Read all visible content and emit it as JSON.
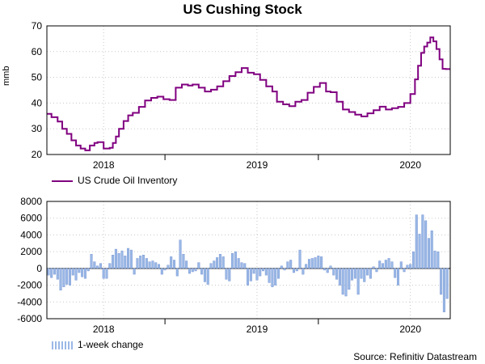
{
  "title": "US Cushing Stock",
  "source": "Source: Refinitiv Datastream",
  "colors": {
    "inventory_line": "#800080",
    "change_bars": "#9ab8e6",
    "change_bars_edge": "#6f8fd0",
    "grid": "#c8c8c8"
  },
  "chart_data": [
    {
      "type": "line",
      "ylabel": "mmb",
      "ylim": [
        20,
        70
      ],
      "yticks": [
        20,
        30,
        40,
        50,
        60,
        70
      ],
      "xlim": [
        2017.63,
        2020.26
      ],
      "xtick_labels": [
        "2018",
        "2019",
        "2020"
      ],
      "grid": true,
      "legend": "bottom-left",
      "series": [
        {
          "name": "US Crude Oil Inventory",
          "x": [
            2017.63,
            2017.66,
            2017.7,
            2017.73,
            2017.76,
            2017.79,
            2017.82,
            2017.85,
            2017.88,
            2017.91,
            2017.94,
            2017.96,
            2018.0,
            2018.04,
            2018.06,
            2018.08,
            2018.1,
            2018.13,
            2018.16,
            2018.19,
            2018.23,
            2018.27,
            2018.31,
            2018.35,
            2018.39,
            2018.43,
            2018.47,
            2018.51,
            2018.55,
            2018.58,
            2018.62,
            2018.66,
            2018.7,
            2018.74,
            2018.78,
            2018.82,
            2018.86,
            2018.9,
            2018.94,
            2018.98,
            2019.02,
            2019.06,
            2019.1,
            2019.13,
            2019.17,
            2019.21,
            2019.25,
            2019.29,
            2019.33,
            2019.37,
            2019.41,
            2019.45,
            2019.48,
            2019.52,
            2019.56,
            2019.6,
            2019.64,
            2019.68,
            2019.72,
            2019.76,
            2019.8,
            2019.84,
            2019.88,
            2019.92,
            2019.96,
            2020.0,
            2020.03,
            2020.05,
            2020.07,
            2020.09,
            2020.11,
            2020.13,
            2020.15,
            2020.17,
            2020.19,
            2020.21,
            2020.23
          ],
          "y": [
            35.8,
            34.5,
            32.8,
            30.0,
            28.0,
            25.5,
            23.5,
            22.3,
            21.6,
            23.5,
            24.5,
            24.8,
            22.3,
            22.6,
            24.5,
            27.0,
            30.0,
            33.0,
            35.2,
            36.2,
            38.5,
            41.0,
            42.0,
            42.5,
            41.5,
            41.2,
            46.0,
            47.2,
            46.8,
            47.2,
            46.0,
            44.5,
            45.2,
            46.5,
            48.5,
            50.5,
            52.0,
            53.6,
            51.8,
            51.2,
            49.0,
            46.5,
            44.5,
            40.5,
            39.5,
            38.8,
            40.5,
            41.2,
            44.0,
            46.3,
            47.8,
            44.5,
            44.2,
            40.5,
            37.5,
            36.5,
            35.5,
            34.8,
            36.0,
            37.2,
            38.6,
            37.5,
            38.0,
            38.5,
            40.0,
            43.5,
            49.2,
            54.5,
            59.5,
            62.0,
            63.5,
            65.5,
            64.0,
            61.0,
            57.0,
            53.3,
            53.2
          ]
        }
      ]
    },
    {
      "type": "bar",
      "ylim": [
        -6000,
        8000
      ],
      "yticks": [
        -6000,
        -4000,
        -2000,
        0,
        2000,
        4000,
        6000,
        8000
      ],
      "xlim": [
        2017.63,
        2020.26
      ],
      "xtick_labels": [
        "2018",
        "2019",
        "2020"
      ],
      "grid": true,
      "legend": "bottom-left",
      "series": [
        {
          "name": "1-week change",
          "x": [
            2017.64,
            2017.66,
            2017.68,
            2017.7,
            2017.72,
            2017.74,
            2017.76,
            2017.78,
            2017.8,
            2017.82,
            2017.84,
            2017.86,
            2017.88,
            2017.9,
            2017.92,
            2017.94,
            2017.96,
            2017.98,
            2018.0,
            2018.02,
            2018.04,
            2018.06,
            2018.08,
            2018.1,
            2018.12,
            2018.14,
            2018.16,
            2018.18,
            2018.2,
            2018.22,
            2018.24,
            2018.26,
            2018.28,
            2018.3,
            2018.32,
            2018.34,
            2018.36,
            2018.38,
            2018.4,
            2018.42,
            2018.44,
            2018.46,
            2018.48,
            2018.5,
            2018.52,
            2018.54,
            2018.56,
            2018.58,
            2018.6,
            2018.62,
            2018.64,
            2018.66,
            2018.68,
            2018.7,
            2018.72,
            2018.74,
            2018.76,
            2018.78,
            2018.8,
            2018.82,
            2018.84,
            2018.86,
            2018.88,
            2018.9,
            2018.92,
            2018.94,
            2018.96,
            2018.98,
            2019.0,
            2019.02,
            2019.04,
            2019.06,
            2019.08,
            2019.1,
            2019.12,
            2019.14,
            2019.16,
            2019.18,
            2019.2,
            2019.22,
            2019.24,
            2019.26,
            2019.28,
            2019.3,
            2019.32,
            2019.34,
            2019.36,
            2019.38,
            2019.4,
            2019.42,
            2019.44,
            2019.46,
            2019.48,
            2019.5,
            2019.52,
            2019.54,
            2019.56,
            2019.58,
            2019.6,
            2019.62,
            2019.64,
            2019.66,
            2019.68,
            2019.7,
            2019.72,
            2019.74,
            2019.76,
            2019.78,
            2019.8,
            2019.82,
            2019.84,
            2019.86,
            2019.88,
            2019.9,
            2019.92,
            2019.94,
            2019.96,
            2019.98,
            2020.0,
            2020.02,
            2020.04,
            2020.06,
            2020.08,
            2020.1,
            2020.12,
            2020.14,
            2020.16,
            2020.18,
            2020.2,
            2020.22,
            2020.24
          ],
          "values": [
            -800,
            -1100,
            -700,
            -1300,
            -2600,
            -2200,
            -1900,
            -2000,
            -800,
            -1400,
            -500,
            -1000,
            -1200,
            -300,
            1700,
            800,
            300,
            600,
            -1200,
            -1200,
            600,
            1600,
            2300,
            1800,
            2100,
            1500,
            2400,
            2200,
            -700,
            1200,
            1500,
            1600,
            1200,
            800,
            900,
            700,
            500,
            -700,
            -200,
            400,
            1400,
            1000,
            -900,
            3400,
            1700,
            900,
            -600,
            -400,
            -300,
            700,
            -700,
            -1600,
            -1900,
            600,
            900,
            1300,
            1700,
            1400,
            -1300,
            -1500,
            1800,
            2000,
            1200,
            700,
            600,
            -2000,
            -1500,
            -600,
            -1400,
            -900,
            -300,
            -800,
            -1700,
            -2200,
            -2000,
            -1200,
            300,
            -200,
            800,
            1000,
            -500,
            -300,
            2200,
            -700,
            500,
            1100,
            1200,
            1300,
            1500,
            1400,
            -200,
            -500,
            300,
            -800,
            -1300,
            -2000,
            -3100,
            -3300,
            -2500,
            -1400,
            -1200,
            -3100,
            -1200,
            -1600,
            -800,
            -1200,
            200,
            -400,
            900,
            600,
            1000,
            1200,
            800,
            -1100,
            -2000,
            800,
            -400,
            400,
            500,
            2000,
            6400,
            4100,
            6400,
            5700,
            3600,
            4500,
            2100,
            2000,
            -3100,
            -5200,
            -3600
          ]
        }
      ]
    }
  ]
}
